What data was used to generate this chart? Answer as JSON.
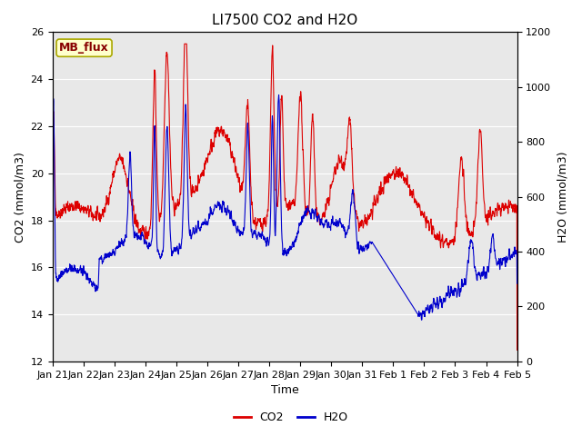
{
  "title": "LI7500 CO2 and H2O",
  "xlabel": "Time",
  "ylabel_left": "CO2 (mmol/m3)",
  "ylabel_right": "H2O (mmol/m3)",
  "co2_ylim": [
    12,
    26
  ],
  "h2o_ylim": [
    0,
    1200
  ],
  "co2_color": "#dd0000",
  "h2o_color": "#0000cc",
  "background_color": "#ffffff",
  "plot_bg_color": "#e8e8e8",
  "grid_color": "#ffffff",
  "annotation_text": "MB_flux",
  "annotation_bg": "#ffffcc",
  "annotation_border": "#aaa800",
  "tick_labels": [
    "Jan 21",
    "Jan 22",
    "Jan 23",
    "Jan 24",
    "Jan 25",
    "Jan 26",
    "Jan 27",
    "Jan 28",
    "Jan 29",
    "Jan 30",
    "Jan 31",
    "Feb 1",
    "Feb 2",
    "Feb 3",
    "Feb 4",
    "Feb 5"
  ],
  "co2_yticks": [
    12,
    14,
    16,
    18,
    20,
    22,
    24,
    26
  ],
  "h2o_yticks": [
    0,
    200,
    400,
    600,
    800,
    1000,
    1200
  ],
  "line_width": 0.8,
  "title_fontsize": 11,
  "label_fontsize": 9,
  "tick_fontsize": 8,
  "legend_fontsize": 9
}
